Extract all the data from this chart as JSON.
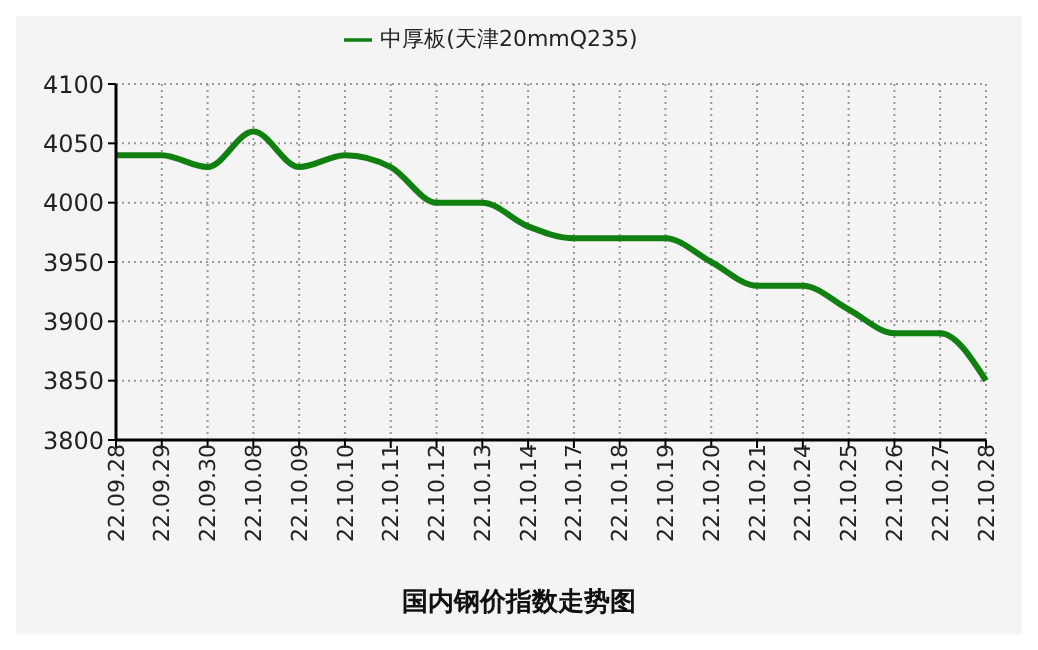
{
  "chart_data": {
    "type": "line",
    "title": "国内钢价指数走势图",
    "categories": [
      "22.09.28",
      "22.09.29",
      "22.09.30",
      "22.10.08",
      "22.10.09",
      "22.10.10",
      "22.10.11",
      "22.10.12",
      "22.10.13",
      "22.10.14",
      "22.10.17",
      "22.10.18",
      "22.10.19",
      "22.10.20",
      "22.10.21",
      "22.10.24",
      "22.10.25",
      "22.10.26",
      "22.10.27",
      "22.10.28"
    ],
    "series": [
      {
        "name": "中厚板(天津20mmQ235)",
        "color": "#108010",
        "values": [
          4040,
          4040,
          4030,
          4060,
          4030,
          4040,
          4030,
          4000,
          4000,
          3980,
          3970,
          3970,
          3970,
          3950,
          3930,
          3930,
          3910,
          3890,
          3890,
          3850
        ]
      }
    ],
    "ylim": [
      3800,
      4100
    ],
    "yticks": [
      3800,
      3850,
      3900,
      3950,
      4000,
      4050,
      4100
    ],
    "grid": true,
    "legend": "top",
    "marker": "none",
    "line_style": "solid"
  }
}
